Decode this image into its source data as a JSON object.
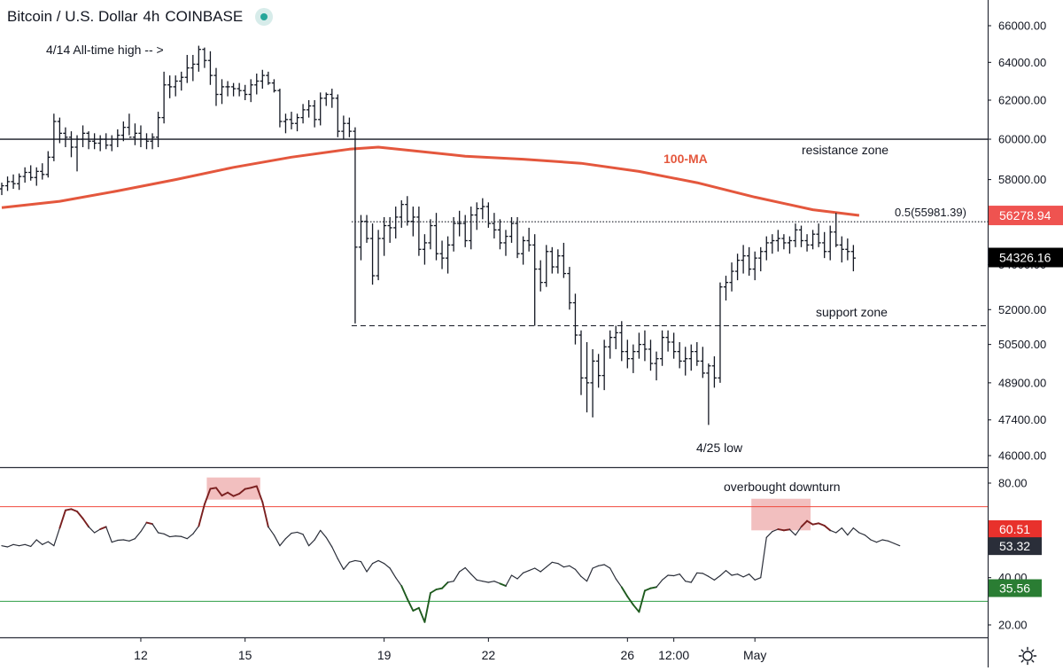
{
  "header": {
    "symbol": "Bitcoin / U.S. Dollar",
    "interval": "4h",
    "exchange": "COINBASE"
  },
  "annotations": {
    "ath": "4/14 All-time high -- >",
    "resistance": "resistance zone",
    "support": "support zone",
    "low": "4/25 low",
    "ma": "100-MA",
    "fib": "0.5(55981.39)",
    "overbought": "overbought downturn"
  },
  "colors": {
    "ma": "#e4573d",
    "upper_band": "#f04a3e",
    "lower_band": "#2e9e45",
    "price_tag_red": "#ef5350",
    "price_tag_black": "#000000",
    "rsi_tag_red": "#e8312c",
    "rsi_tag_dark": "#2a2e39",
    "rsi_tag_green": "#2a7d33",
    "highlight": "#f0b4b4"
  },
  "chart_data": [
    {
      "type": "ohlc",
      "title": "Bitcoin / U.S. Dollar 4h COINBASE",
      "y_scale": "log",
      "ylim": [
        45500,
        67500
      ],
      "y_ticks": [
        "66000.00",
        "64000.00",
        "62000.00",
        "60000.00",
        "58000.00",
        "56000.00",
        "54000.00",
        "52000.00",
        "50500.00",
        "48900.00",
        "47400.00",
        "46000.00"
      ],
      "x_ticks": [
        "12",
        "15",
        "19",
        "22",
        "26",
        "12:00",
        "May"
      ],
      "x_tick_bar_index": [
        24,
        42,
        66,
        84,
        108,
        116,
        130
      ],
      "bars": [
        [
          57550,
          57850,
          57250,
          57700
        ],
        [
          57700,
          58150,
          57450,
          57900
        ],
        [
          57900,
          58250,
          57550,
          57800
        ],
        [
          57800,
          58300,
          57500,
          58150
        ],
        [
          58150,
          58600,
          57850,
          58350
        ],
        [
          58350,
          58700,
          57950,
          58100
        ],
        [
          58100,
          58600,
          57700,
          58400
        ],
        [
          58400,
          58800,
          58000,
          58250
        ],
        [
          58250,
          59400,
          58100,
          59100
        ],
        [
          59100,
          61300,
          58900,
          60900
        ],
        [
          60900,
          61100,
          59800,
          60300
        ],
        [
          60300,
          60600,
          59600,
          60100
        ],
        [
          60100,
          60400,
          59100,
          59600
        ],
        [
          59600,
          60200,
          58400,
          60000
        ],
        [
          60000,
          60700,
          59600,
          60300
        ],
        [
          60300,
          60400,
          59500,
          59900
        ],
        [
          59900,
          60300,
          59500,
          59800
        ],
        [
          59800,
          60200,
          59400,
          60000
        ],
        [
          60000,
          60300,
          59500,
          59700
        ],
        [
          59700,
          60200,
          59400,
          60000
        ],
        [
          60000,
          60500,
          59600,
          60200
        ],
        [
          60200,
          60900,
          59900,
          60600
        ],
        [
          60600,
          61300,
          60200,
          60100
        ],
        [
          60100,
          60800,
          59700,
          60300
        ],
        [
          60300,
          60700,
          59600,
          60000
        ],
        [
          60000,
          60300,
          59500,
          59900
        ],
        [
          59900,
          60300,
          59500,
          60100
        ],
        [
          60100,
          61400,
          59600,
          61100
        ],
        [
          61100,
          63500,
          60800,
          62800
        ],
        [
          62800,
          63300,
          62100,
          62700
        ],
        [
          62700,
          63300,
          62200,
          63000
        ],
        [
          63000,
          63500,
          62500,
          63200
        ],
        [
          63200,
          64400,
          62900,
          63700
        ],
        [
          63700,
          64400,
          63000,
          63900
        ],
        [
          63900,
          64900,
          63500,
          64700
        ],
        [
          64700,
          64800,
          63700,
          64100
        ],
        [
          64100,
          64600,
          62800,
          63300
        ],
        [
          63300,
          63700,
          61700,
          62300
        ],
        [
          62300,
          63100,
          61800,
          62700
        ],
        [
          62700,
          63000,
          62200,
          62700
        ],
        [
          62700,
          62900,
          62200,
          62600
        ],
        [
          62600,
          62900,
          62200,
          62500
        ],
        [
          62500,
          62800,
          62000,
          62300
        ],
        [
          62300,
          63100,
          61900,
          62800
        ],
        [
          62800,
          63400,
          62300,
          63000
        ],
        [
          63000,
          63600,
          62600,
          63300
        ],
        [
          63300,
          63500,
          62800,
          62900
        ],
        [
          62900,
          63100,
          62400,
          62500
        ],
        [
          62500,
          62600,
          60600,
          60900
        ],
        [
          60900,
          61300,
          60300,
          61000
        ],
        [
          61000,
          61400,
          60500,
          60800
        ],
        [
          60800,
          61300,
          60400,
          61100
        ],
        [
          61100,
          61800,
          60800,
          61500
        ],
        [
          61500,
          62000,
          61100,
          61700
        ],
        [
          61700,
          62000,
          60600,
          61000
        ],
        [
          61000,
          62400,
          60700,
          62100
        ],
        [
          62100,
          62400,
          61700,
          62300
        ],
        [
          62300,
          62600,
          61600,
          62100
        ],
        [
          62100,
          62300,
          60100,
          60400
        ],
        [
          60400,
          61200,
          60000,
          60800
        ],
        [
          60800,
          61100,
          60100,
          60400
        ],
        [
          60400,
          60600,
          51400,
          54800
        ],
        [
          54800,
          56300,
          54200,
          56000
        ],
        [
          56000,
          56300,
          55000,
          55200
        ],
        [
          55200,
          55900,
          53100,
          53500
        ],
        [
          53500,
          55600,
          53300,
          55200
        ],
        [
          55200,
          56200,
          54400,
          55800
        ],
        [
          55800,
          56200,
          55000,
          55700
        ],
        [
          55700,
          56700,
          55200,
          56200
        ],
        [
          56200,
          57000,
          55700,
          56800
        ],
        [
          56800,
          57200,
          55800,
          56000
        ],
        [
          56000,
          56700,
          55300,
          56200
        ],
        [
          56200,
          56700,
          54400,
          54700
        ],
        [
          54700,
          55400,
          54000,
          55000
        ],
        [
          55000,
          56100,
          54700,
          55800
        ],
        [
          55800,
          56400,
          54200,
          54500
        ],
        [
          54500,
          55100,
          53800,
          54300
        ],
        [
          54300,
          55300,
          53600,
          54900
        ],
        [
          54900,
          56200,
          54600,
          55900
        ],
        [
          55900,
          56500,
          55300,
          55900
        ],
        [
          55900,
          56300,
          54800,
          55100
        ],
        [
          55100,
          56700,
          54700,
          56300
        ],
        [
          56300,
          56900,
          55600,
          56600
        ],
        [
          56600,
          57100,
          56100,
          56700
        ],
        [
          56700,
          56900,
          55700,
          55900
        ],
        [
          55900,
          56400,
          55200,
          55600
        ],
        [
          55600,
          56100,
          54700,
          55000
        ],
        [
          55000,
          55600,
          54400,
          55300
        ],
        [
          55300,
          56200,
          55000,
          55900
        ],
        [
          55900,
          56200,
          54300,
          54500
        ],
        [
          54500,
          55300,
          54000,
          55100
        ],
        [
          55100,
          55700,
          54600,
          54900
        ],
        [
          54900,
          55400,
          51300,
          53800
        ],
        [
          53800,
          54200,
          52800,
          53200
        ],
        [
          53200,
          54900,
          53000,
          54600
        ],
        [
          54600,
          54800,
          53600,
          53900
        ],
        [
          53900,
          54700,
          53600,
          54400
        ],
        [
          54400,
          55000,
          53400,
          53600
        ],
        [
          53600,
          53900,
          52000,
          52300
        ],
        [
          52300,
          52700,
          50500,
          50900
        ],
        [
          50900,
          51100,
          48400,
          49100
        ],
        [
          49100,
          50600,
          47700,
          48900
        ],
        [
          48900,
          50300,
          47500,
          49800
        ],
        [
          49800,
          50100,
          48700,
          49200
        ],
        [
          49200,
          50700,
          48600,
          50400
        ],
        [
          50400,
          51100,
          49900,
          50800
        ],
        [
          50800,
          51300,
          50300,
          51000
        ],
        [
          51000,
          51500,
          49800,
          50200
        ],
        [
          50200,
          50700,
          49500,
          49900
        ],
        [
          49900,
          50500,
          49300,
          50200
        ],
        [
          50200,
          51000,
          49900,
          50500
        ],
        [
          50500,
          51100,
          49800,
          50300
        ],
        [
          50300,
          50700,
          49400,
          49700
        ],
        [
          49700,
          50200,
          49000,
          49900
        ],
        [
          49900,
          51100,
          49600,
          50800
        ],
        [
          50800,
          51100,
          50200,
          50600
        ],
        [
          50600,
          51000,
          49900,
          50200
        ],
        [
          50200,
          50600,
          49500,
          49800
        ],
        [
          49800,
          50400,
          49200,
          49900
        ],
        [
          49900,
          50500,
          49400,
          50200
        ],
        [
          50200,
          50600,
          49600,
          49800
        ],
        [
          49800,
          50400,
          49100,
          49300
        ],
        [
          49300,
          49700,
          47200,
          49600
        ],
        [
          49600,
          50000,
          48700,
          49100
        ],
        [
          49100,
          53200,
          48900,
          53000
        ],
        [
          53000,
          53500,
          52400,
          53200
        ],
        [
          53200,
          54100,
          52800,
          53700
        ],
        [
          53700,
          54500,
          53300,
          54200
        ],
        [
          54200,
          54900,
          53600,
          54400
        ],
        [
          54400,
          54800,
          53500,
          53800
        ],
        [
          53800,
          54600,
          53300,
          54300
        ],
        [
          54300,
          54800,
          53700,
          54600
        ],
        [
          54600,
          55300,
          54200,
          55000
        ],
        [
          55000,
          55400,
          54500,
          55100
        ],
        [
          55100,
          55600,
          54600,
          55200
        ],
        [
          55200,
          55400,
          54700,
          55000
        ],
        [
          55000,
          55300,
          54500,
          55100
        ],
        [
          55100,
          55900,
          54800,
          55600
        ],
        [
          55600,
          55800,
          54800,
          55100
        ],
        [
          55100,
          55400,
          54600,
          54900
        ],
        [
          54900,
          55600,
          54700,
          55400
        ],
        [
          55400,
          55900,
          54800,
          55000
        ],
        [
          55000,
          55500,
          54300,
          54600
        ],
        [
          54600,
          55800,
          54200,
          55500
        ],
        [
          55500,
          56400,
          54800,
          54900
        ],
        [
          54900,
          55300,
          54100,
          54700
        ],
        [
          54700,
          55200,
          54200,
          54600
        ],
        [
          54600,
          54900,
          53700,
          54300
        ]
      ],
      "ma100": {
        "name": "100-MA",
        "x": [
          0,
          10,
          20,
          30,
          40,
          50,
          60,
          65,
          70,
          80,
          90,
          100,
          110,
          120,
          130,
          140,
          148
        ],
        "values": [
          56650,
          56950,
          57450,
          58000,
          58600,
          59100,
          59500,
          59600,
          59450,
          59150,
          59000,
          58800,
          58400,
          57850,
          57150,
          56550,
          56280
        ]
      },
      "horizontal_lines": [
        {
          "label": "resistance zone",
          "value": 60000,
          "style": "solid"
        },
        {
          "label": "0.5(55981.39)",
          "value": 55981.39,
          "style": "dotted",
          "from_bar": 61
        },
        {
          "label": "support zone",
          "value": 51300,
          "style": "dashed",
          "from_bar": 61
        }
      ],
      "last_values": [
        {
          "label": "56278.94",
          "value": 56278.94,
          "color": "#ef5350"
        },
        {
          "label": "54326.16",
          "value": 54326.16,
          "color": "#000000"
        }
      ]
    },
    {
      "type": "line",
      "title": "",
      "ylim": [
        17,
        83
      ],
      "y_ticks": [
        "80.00",
        "40.00",
        "20.00"
      ],
      "bands": [
        {
          "value": 70
        },
        {
          "value": 30
        }
      ],
      "series": [
        {
          "values": [
            53.5,
            53,
            54,
            53.5,
            54,
            53.2,
            56,
            54,
            55.2,
            53.5,
            61,
            68.5,
            69,
            68,
            65,
            61.5,
            59,
            60.5,
            61.5,
            55,
            55.8,
            56,
            55.5,
            56.5,
            59.5,
            63.3,
            62.7,
            59,
            58.5,
            57.3,
            57.6,
            57.4,
            56.5,
            58.5,
            61.8,
            71,
            77.6,
            78,
            74.7,
            76,
            74.5,
            75.5,
            77.5,
            78,
            78.7,
            72,
            61.5,
            58,
            53.5,
            56.5,
            58.8,
            59.2,
            58.3,
            53.5,
            56,
            60,
            57,
            53,
            48,
            43.5,
            46.5,
            47.2,
            46.8,
            42.5,
            46,
            47.2,
            46,
            44,
            40,
            36.5,
            31,
            26,
            27.2,
            21.2,
            33.5,
            35,
            35.5,
            38,
            38.5,
            42.5,
            44.2,
            41.5,
            39,
            38.5,
            38,
            38.5,
            37.5,
            36.5,
            41,
            39.5,
            42,
            43,
            44,
            42.5,
            44.5,
            46.5,
            46,
            44.5,
            45,
            43.5,
            40.5,
            38.5,
            44,
            45,
            45.5,
            44,
            39.5,
            36,
            32,
            28.5,
            25.5,
            34.5,
            35.5,
            36,
            39,
            41,
            40.8,
            41.5,
            38.5,
            38,
            42,
            41.8,
            40.5,
            39,
            40.8,
            43,
            41,
            41.5,
            40.3,
            41.5,
            39,
            40,
            57,
            59.5,
            60.5,
            60,
            60.4,
            58,
            61.5,
            64,
            62.5,
            63,
            62,
            60,
            59,
            61,
            58,
            61,
            59,
            58,
            56,
            55,
            56,
            55.5,
            54.5,
            53.5
          ]
        }
      ],
      "last_values": [
        {
          "label": "60.51",
          "value": 60.51,
          "color": "#e8312c"
        },
        {
          "label": "53.32",
          "value": 53.32,
          "color": "#2a2e39"
        },
        {
          "label": "35.56",
          "value": 35.56,
          "color": "#2a7d33"
        }
      ],
      "highlights": [
        {
          "label": "",
          "from_bar": 36,
          "to_bar": 44,
          "y_range": [
            73,
            79
          ]
        },
        {
          "label": "overbought downturn",
          "from_bar": 130,
          "to_bar": 139,
          "y_range": [
            60,
            70
          ]
        }
      ]
    }
  ]
}
